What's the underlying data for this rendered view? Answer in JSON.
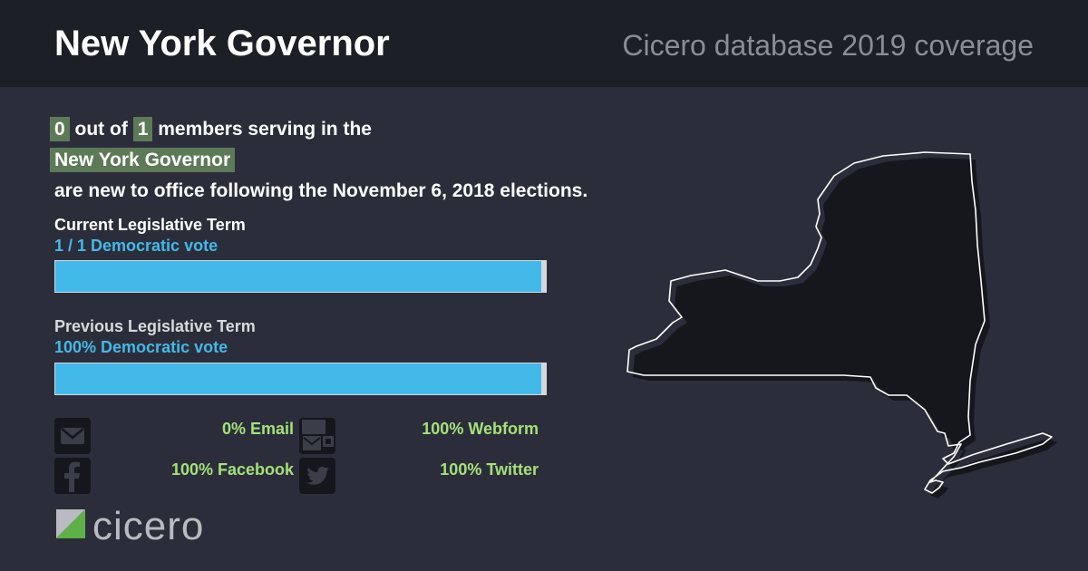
{
  "header": {
    "title": "New York Governor",
    "subtitle": "Cicero database 2019 coverage"
  },
  "summary": {
    "new_count": "0",
    "out_of_text": "out of",
    "total_count": "1",
    "members_text": "members serving in the",
    "body_name": "New York Governor",
    "closing_text": "are new to office following the November 6, 2018 elections."
  },
  "current_term": {
    "label": "Current Legislative Term",
    "vote_text": "1 / 1 Democratic vote",
    "democratic_fraction": 1.0
  },
  "previous_term": {
    "label": "Previous Legislative Term",
    "vote_text": "100% Democratic vote",
    "democratic_fraction": 1.0
  },
  "contact_stats": [
    {
      "icon": "email-icon",
      "value": "0% Email"
    },
    {
      "icon": "webform-icon",
      "value": "100% Webform"
    },
    {
      "icon": "facebook-icon",
      "value": "100% Facebook"
    },
    {
      "icon": "twitter-icon",
      "value": "100% Twitter"
    }
  ],
  "colors": {
    "democratic": "#43b9e9",
    "highlight": "#5d7a58",
    "stat_text": "#a5e07a",
    "background": "#2b2e3a",
    "header_background": "#1d1f27"
  },
  "logo": {
    "text": "cicero"
  }
}
